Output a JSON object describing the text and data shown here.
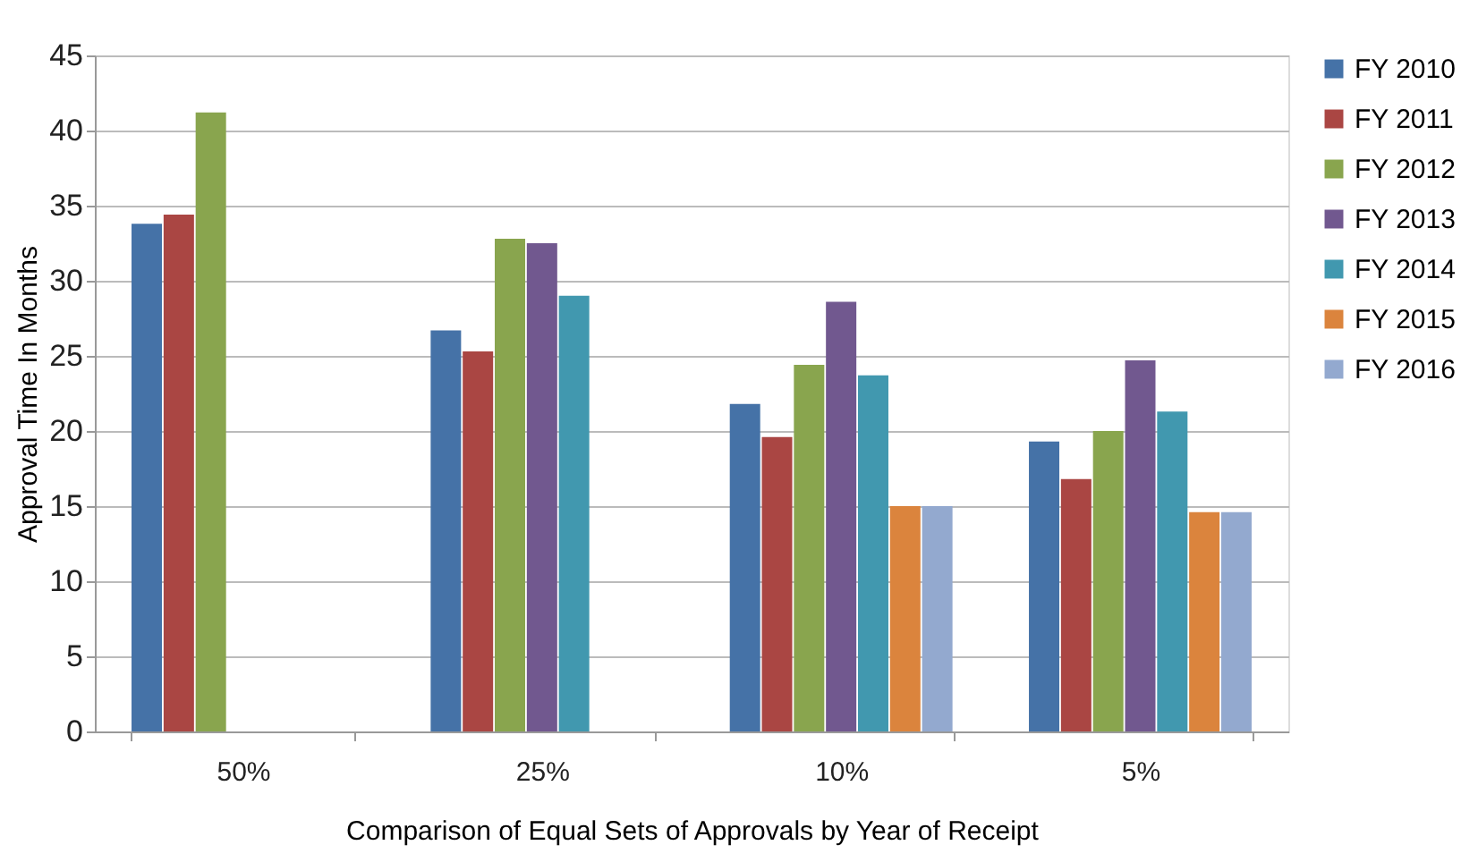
{
  "chart_data": {
    "type": "bar",
    "xlabel": "Comparison of Equal Sets of Approvals by Year of Receipt",
    "ylabel": "Approval Time In Months",
    "categories": [
      "50%",
      "25%",
      "10%",
      "5%"
    ],
    "series": [
      {
        "name": "FY 2010",
        "color": "#4572a7",
        "values": [
          33.8,
          26.7,
          21.8,
          19.3
        ]
      },
      {
        "name": "FY 2011",
        "color": "#aa4643",
        "values": [
          34.4,
          25.3,
          19.6,
          16.8
        ]
      },
      {
        "name": "FY 2012",
        "color": "#89a54e",
        "values": [
          41.2,
          32.8,
          24.4,
          20.0
        ]
      },
      {
        "name": "FY 2013",
        "color": "#71588f",
        "values": [
          null,
          32.5,
          28.6,
          24.7
        ]
      },
      {
        "name": "FY 2014",
        "color": "#4198af",
        "values": [
          null,
          29.0,
          23.7,
          21.3
        ]
      },
      {
        "name": "FY 2015",
        "color": "#db843d",
        "values": [
          null,
          null,
          15.0,
          14.6
        ]
      },
      {
        "name": "FY 2016",
        "color": "#93a9cf",
        "values": [
          null,
          null,
          15.0,
          14.6
        ]
      }
    ],
    "ylim": [
      0,
      45
    ],
    "yticks": [
      0,
      5,
      10,
      15,
      20,
      25,
      30,
      35,
      40,
      45
    ],
    "grid": "y",
    "legend": "right"
  }
}
